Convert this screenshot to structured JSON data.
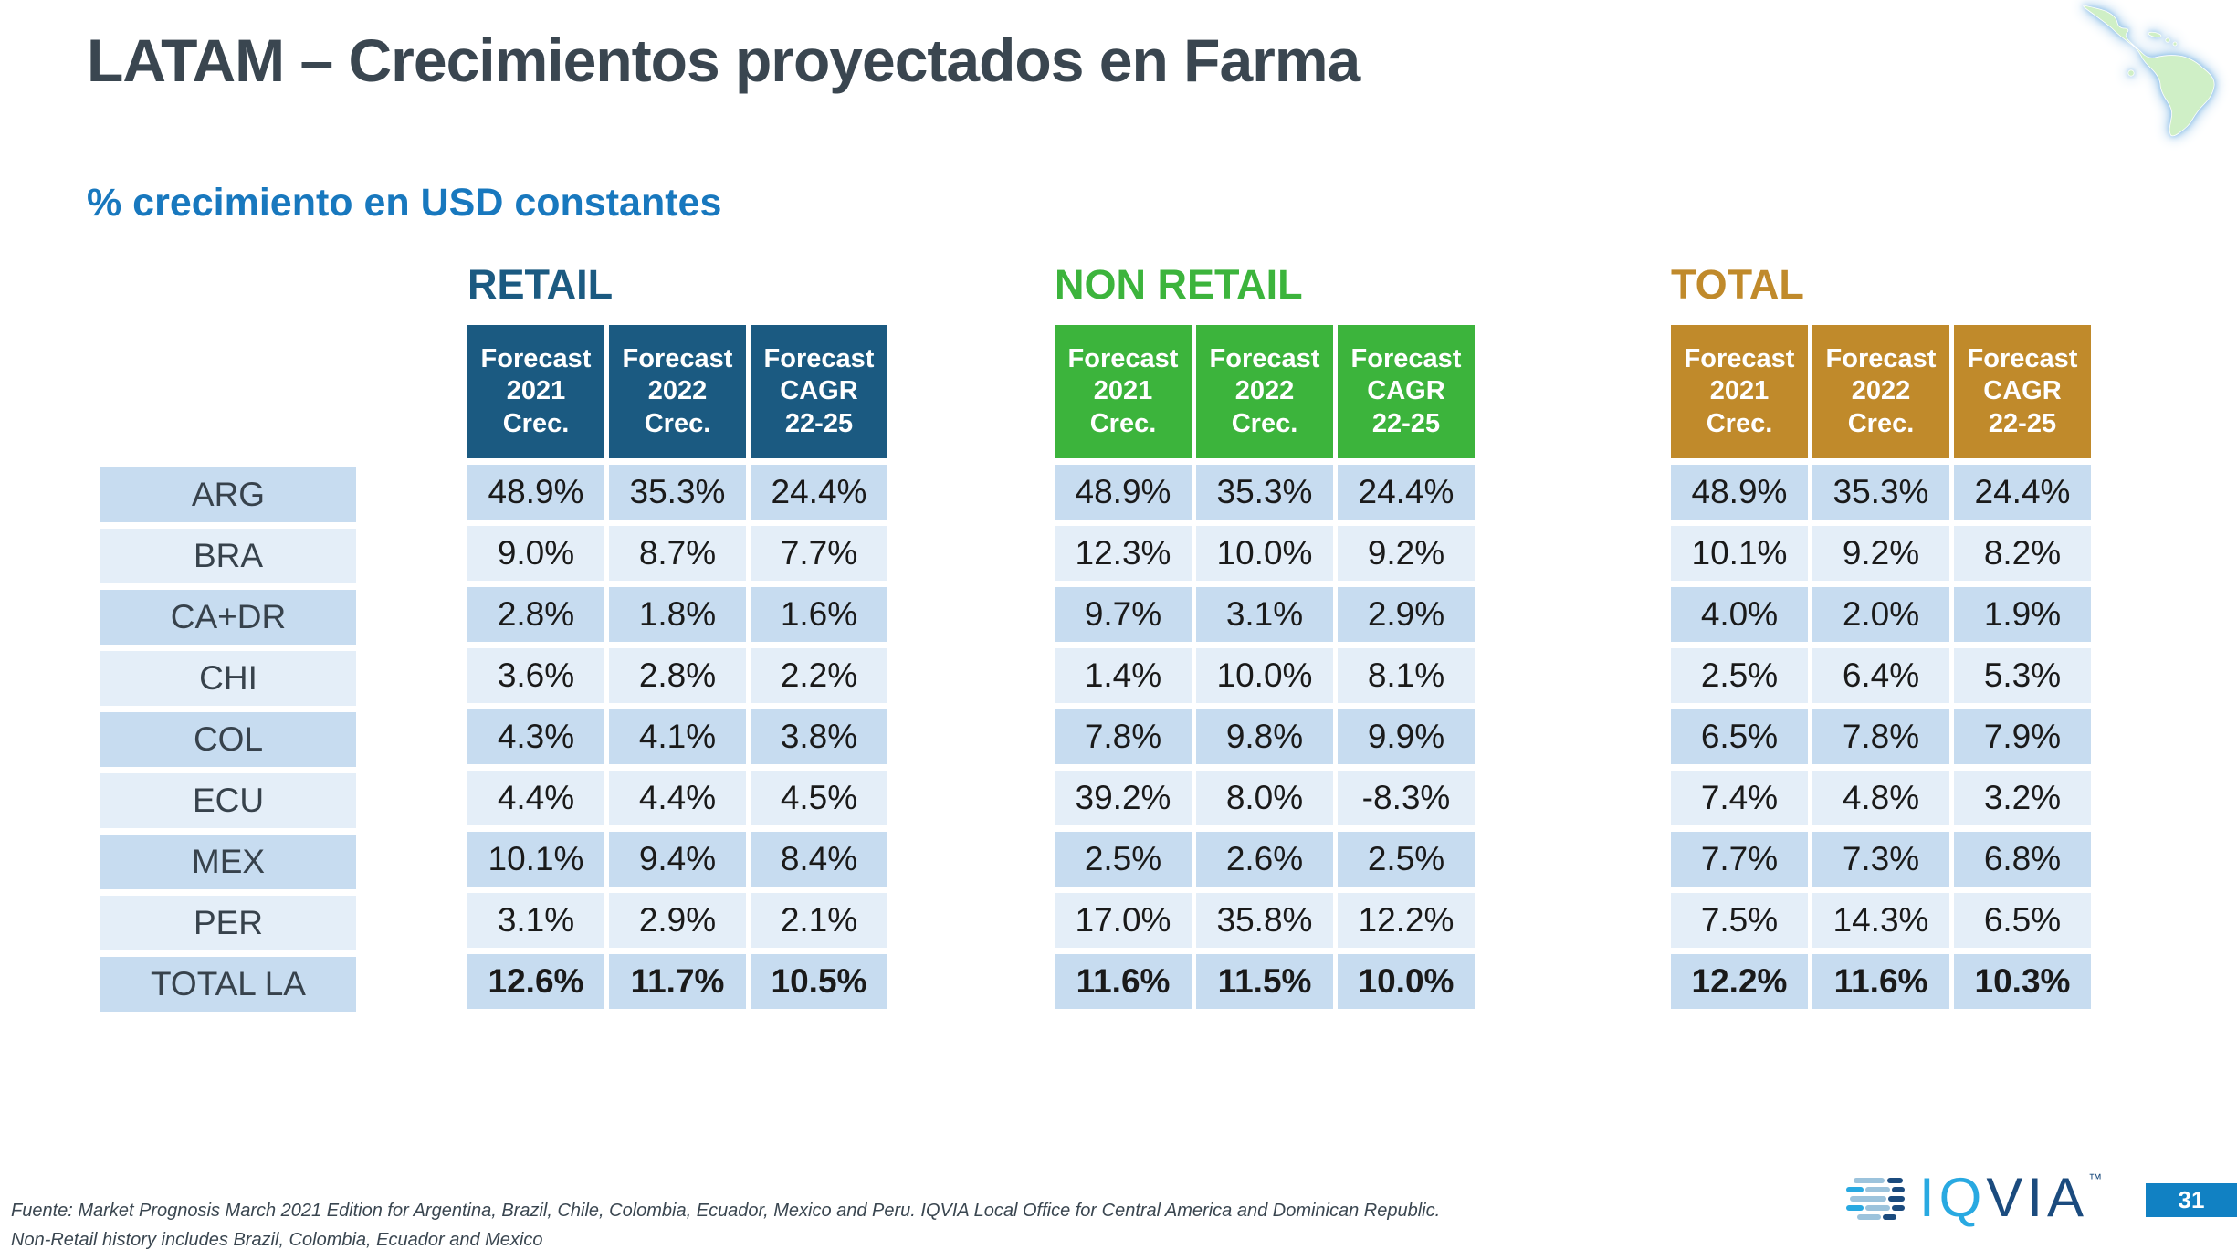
{
  "slide": {
    "title": "LATAM – Crecimientos proyectados en Farma",
    "subtitle": "% crecimiento en USD constantes",
    "page_number": "31",
    "footnote_line1": "Fuente: Market Prognosis March 2021 Edition for Argentina, Brazil, Chile, Colombia, Ecuador, Mexico and Peru. IQVIA Local Office for Central America and Dominican Republic.",
    "footnote_line2": "Non-Retail history includes Brazil, Colombia, Ecuador and Mexico",
    "logo": {
      "left": "IQ",
      "right": "VIA",
      "tm": "™"
    }
  },
  "colors": {
    "title_text": "#3A4650",
    "subtitle_text": "#1878BE",
    "value_text": "#1A1A1A",
    "label_text": "#37424C",
    "footnote_text": "#3A4650",
    "row_band_dark": "#C7DCF0",
    "row_band_light": "#E4EEF8",
    "page_box": "#1181C3",
    "logo_cyan": "#29A9E1",
    "logo_navy": "#1B4B7E",
    "logo_steel": "#9CC3DC",
    "map_green": "#CFEFC6",
    "map_glow": "#8FC0E8"
  },
  "chart_data": {
    "type": "table",
    "title": "LATAM – Crecimientos proyectados en Farma",
    "unit": "% crecimiento en USD constantes",
    "row_labels": [
      "ARG",
      "BRA",
      "CA+DR",
      "CHI",
      "COL",
      "ECU",
      "MEX",
      "PER",
      "TOTAL LA"
    ],
    "groups": [
      {
        "name": "RETAIL",
        "color": "#1B5A81",
        "headers": [
          "Forecast\n2021\nCrec.",
          "Forecast\n2022\nCrec.",
          "Forecast\nCAGR\n22-25"
        ],
        "rows": [
          [
            "48.9%",
            "35.3%",
            "24.4%"
          ],
          [
            "9.0%",
            "8.7%",
            "7.7%"
          ],
          [
            "2.8%",
            "1.8%",
            "1.6%"
          ],
          [
            "3.6%",
            "2.8%",
            "2.2%"
          ],
          [
            "4.3%",
            "4.1%",
            "3.8%"
          ],
          [
            "4.4%",
            "4.4%",
            "4.5%"
          ],
          [
            "10.1%",
            "9.4%",
            "8.4%"
          ],
          [
            "3.1%",
            "2.9%",
            "2.1%"
          ],
          [
            "12.6%",
            "11.7%",
            "10.5%"
          ]
        ]
      },
      {
        "name": "NON RETAIL",
        "color": "#3CB43C",
        "headers": [
          "Forecast\n2021\nCrec.",
          "Forecast\n2022\nCrec.",
          "Forecast\nCAGR\n22-25"
        ],
        "rows": [
          [
            "48.9%",
            "35.3%",
            "24.4%"
          ],
          [
            "12.3%",
            "10.0%",
            "9.2%"
          ],
          [
            "9.7%",
            "3.1%",
            "2.9%"
          ],
          [
            "1.4%",
            "10.0%",
            "8.1%"
          ],
          [
            "7.8%",
            "9.8%",
            "9.9%"
          ],
          [
            "39.2%",
            "8.0%",
            "-8.3%"
          ],
          [
            "2.5%",
            "2.6%",
            "2.5%"
          ],
          [
            "17.0%",
            "35.8%",
            "12.2%"
          ],
          [
            "11.6%",
            "11.5%",
            "10.0%"
          ]
        ]
      },
      {
        "name": "TOTAL",
        "color": "#C08A2B",
        "headers": [
          "Forecast\n2021\nCrec.",
          "Forecast\n2022\nCrec.",
          "Forecast\nCAGR\n22-25"
        ],
        "rows": [
          [
            "48.9%",
            "35.3%",
            "24.4%"
          ],
          [
            "10.1%",
            "9.2%",
            "8.2%"
          ],
          [
            "4.0%",
            "2.0%",
            "1.9%"
          ],
          [
            "2.5%",
            "6.4%",
            "5.3%"
          ],
          [
            "6.5%",
            "7.8%",
            "7.9%"
          ],
          [
            "7.4%",
            "4.8%",
            "3.2%"
          ],
          [
            "7.7%",
            "7.3%",
            "6.8%"
          ],
          [
            "7.5%",
            "14.3%",
            "6.5%"
          ],
          [
            "12.2%",
            "11.6%",
            "10.3%"
          ]
        ]
      }
    ]
  }
}
